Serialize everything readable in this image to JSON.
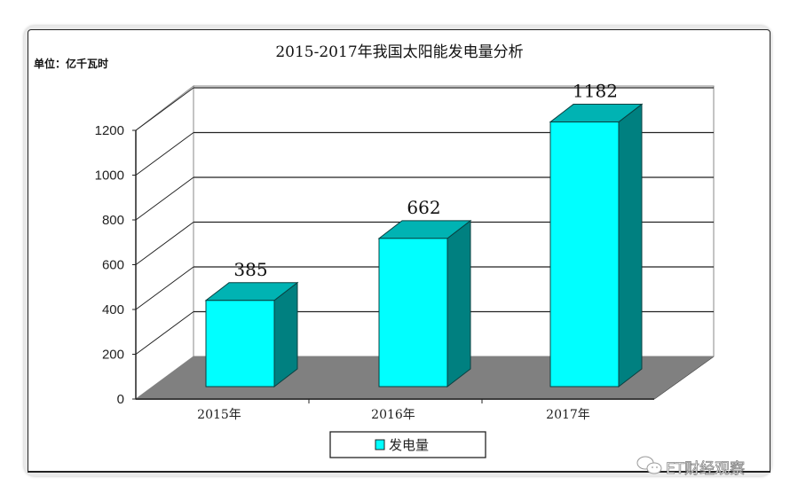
{
  "chart_data": {
    "type": "bar",
    "style": "3d-column",
    "title": "2015-2017年我国太阳能发电量分析",
    "unit_label": "单位：亿千瓦时",
    "categories": [
      "2015年",
      "2016年",
      "2017年"
    ],
    "series": [
      {
        "name": "发电量",
        "values": [
          385,
          662,
          1182
        ],
        "color": "#00ffff",
        "side_color": "#008080",
        "top_color": "#00b3b3"
      }
    ],
    "data_labels": [
      "385",
      "662",
      "1182"
    ],
    "xlabel": "",
    "ylabel": "",
    "ylim": [
      0,
      1200
    ],
    "yticks": [
      "0",
      "200",
      "400",
      "600",
      "800",
      "1000",
      "1200"
    ],
    "grid": true,
    "legend_position": "bottom",
    "floor_color": "#808080"
  },
  "watermark": {
    "icon": "wechat-icon",
    "text": "ET财经观察"
  }
}
